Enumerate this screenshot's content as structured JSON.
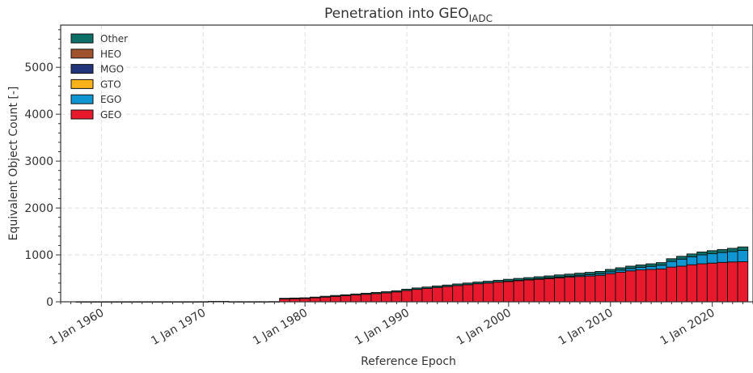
{
  "chart_data": {
    "type": "bar",
    "stacked": true,
    "title_main": "Penetration into GEO",
    "title_sub": "IADC",
    "xlabel": "Reference Epoch",
    "ylabel": "Equivalent Object Count [-]",
    "ylim": [
      0,
      5900
    ],
    "yticks": [
      0,
      1000,
      2000,
      3000,
      4000,
      5000
    ],
    "xlim": [
      1956,
      2024
    ],
    "xticks": [
      {
        "year": 1960,
        "label": "1 Jan 1960"
      },
      {
        "year": 1970,
        "label": "1 Jan 1970"
      },
      {
        "year": 1980,
        "label": "1 Jan 1980"
      },
      {
        "year": 1990,
        "label": "1 Jan 1990"
      },
      {
        "year": 2000,
        "label": "1 Jan 2000"
      },
      {
        "year": 2010,
        "label": "1 Jan 2010"
      },
      {
        "year": 2020,
        "label": "1 Jan 2020"
      }
    ],
    "grid": true,
    "legend_position": "top-left",
    "x": [
      1958,
      1959,
      1960,
      1961,
      1962,
      1963,
      1964,
      1965,
      1966,
      1967,
      1968,
      1969,
      1970,
      1971,
      1972,
      1973,
      1974,
      1975,
      1976,
      1977,
      1978,
      1979,
      1980,
      1981,
      1982,
      1983,
      1984,
      1985,
      1986,
      1987,
      1988,
      1989,
      1990,
      1991,
      1992,
      1993,
      1994,
      1995,
      1996,
      1997,
      1998,
      1999,
      2000,
      2001,
      2002,
      2003,
      2004,
      2005,
      2006,
      2007,
      2008,
      2009,
      2010,
      2011,
      2012,
      2013,
      2014,
      2015,
      2016,
      2017,
      2018,
      2019,
      2020,
      2021,
      2022,
      2023
    ],
    "series": [
      {
        "name": "GEO",
        "color": "#e8192c",
        "values": [
          2,
          2,
          2,
          2,
          2,
          2,
          2,
          2,
          2,
          2,
          2,
          2,
          3,
          10,
          10,
          3,
          3,
          3,
          3,
          5,
          60,
          65,
          70,
          85,
          100,
          115,
          130,
          145,
          160,
          175,
          190,
          210,
          240,
          265,
          285,
          305,
          325,
          345,
          365,
          385,
          400,
          420,
          435,
          450,
          465,
          480,
          495,
          510,
          525,
          540,
          550,
          565,
          600,
          630,
          660,
          680,
          690,
          700,
          740,
          760,
          790,
          810,
          825,
          840,
          850,
          855
        ]
      },
      {
        "name": "EGO",
        "color": "#0f96d2",
        "values": [
          0,
          0,
          0,
          0,
          0,
          0,
          0,
          0,
          0,
          0,
          0,
          0,
          0,
          0,
          0,
          0,
          0,
          0,
          0,
          0,
          0,
          0,
          0,
          0,
          0,
          0,
          0,
          0,
          0,
          0,
          0,
          0,
          0,
          0,
          0,
          0,
          0,
          0,
          0,
          0,
          0,
          0,
          5,
          8,
          10,
          12,
          15,
          18,
          20,
          25,
          30,
          35,
          40,
          45,
          50,
          55,
          65,
          80,
          120,
          150,
          170,
          190,
          200,
          210,
          220,
          240
        ]
      },
      {
        "name": "GTO",
        "color": "#f9b21a",
        "values": [
          0,
          0,
          0,
          0,
          0,
          0,
          0,
          0,
          0,
          0,
          0,
          0,
          0,
          0,
          0,
          0,
          0,
          0,
          0,
          0,
          0,
          0,
          0,
          0,
          0,
          0,
          0,
          0,
          0,
          0,
          0,
          0,
          0,
          0,
          0,
          0,
          0,
          0,
          0,
          0,
          0,
          0,
          0,
          0,
          0,
          0,
          0,
          0,
          0,
          0,
          0,
          0,
          0,
          0,
          0,
          0,
          0,
          0,
          0,
          0,
          0,
          0,
          0,
          0,
          0,
          0
        ]
      },
      {
        "name": "MGO",
        "color": "#22347a",
        "values": [
          0,
          0,
          0,
          0,
          0,
          0,
          0,
          0,
          0,
          0,
          0,
          0,
          0,
          0,
          0,
          0,
          0,
          0,
          0,
          0,
          0,
          0,
          0,
          0,
          0,
          0,
          0,
          0,
          0,
          0,
          0,
          0,
          0,
          0,
          0,
          0,
          0,
          0,
          0,
          0,
          0,
          0,
          0,
          0,
          0,
          0,
          0,
          0,
          0,
          0,
          0,
          0,
          0,
          0,
          0,
          0,
          0,
          0,
          0,
          0,
          0,
          0,
          0,
          0,
          0,
          0
        ]
      },
      {
        "name": "HEO",
        "color": "#a0522d",
        "values": [
          0,
          0,
          0,
          0,
          0,
          0,
          0,
          0,
          0,
          0,
          0,
          0,
          0,
          0,
          0,
          0,
          0,
          0,
          0,
          0,
          0,
          0,
          0,
          0,
          0,
          0,
          0,
          0,
          0,
          0,
          0,
          0,
          0,
          0,
          0,
          0,
          0,
          0,
          0,
          0,
          0,
          0,
          0,
          0,
          0,
          0,
          0,
          0,
          0,
          0,
          0,
          0,
          0,
          0,
          0,
          0,
          0,
          0,
          0,
          0,
          0,
          0,
          0,
          0,
          0,
          0
        ]
      },
      {
        "name": "Other",
        "color": "#0d7068",
        "values": [
          0,
          0,
          0,
          0,
          0,
          0,
          0,
          0,
          0,
          0,
          0,
          0,
          0,
          0,
          0,
          0,
          0,
          0,
          0,
          0,
          15,
          15,
          15,
          15,
          18,
          20,
          20,
          22,
          22,
          25,
          25,
          25,
          28,
          30,
          30,
          32,
          32,
          35,
          35,
          35,
          38,
          38,
          40,
          40,
          40,
          42,
          42,
          45,
          45,
          45,
          48,
          48,
          50,
          50,
          50,
          52,
          55,
          55,
          58,
          60,
          60,
          62,
          65,
          65,
          70,
          75
        ]
      }
    ]
  }
}
